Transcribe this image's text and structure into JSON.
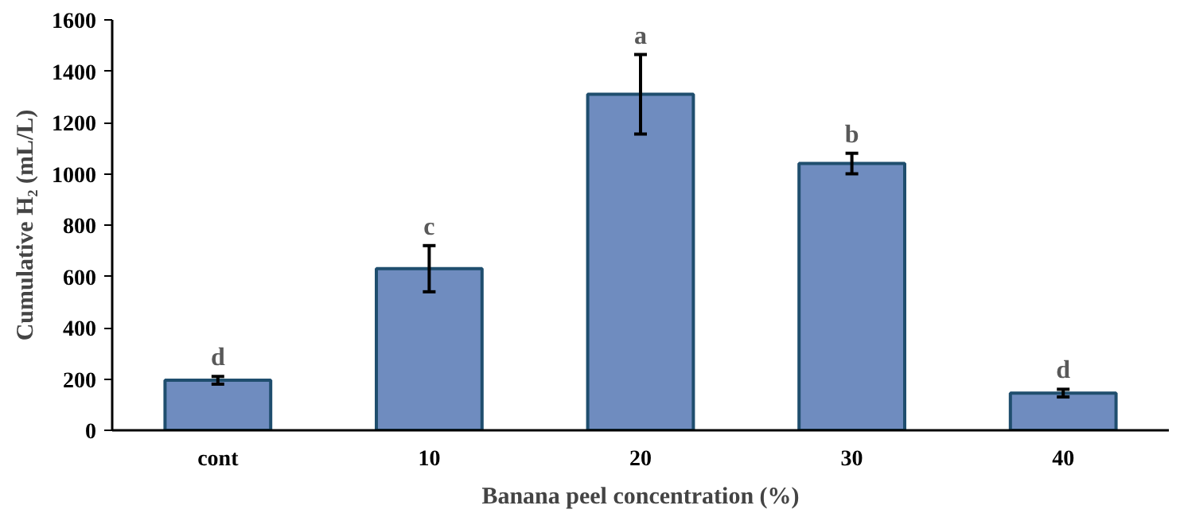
{
  "chart_data": {
    "type": "bar",
    "xlabel": "Banana peel concentration (%)",
    "ylabel": "Cumulative H₂ (mL/L)",
    "categories": [
      "cont",
      "10",
      "20",
      "30",
      "40"
    ],
    "values": [
      195,
      630,
      1310,
      1040,
      145
    ],
    "errors": [
      15,
      90,
      155,
      40,
      15
    ],
    "color": "#6f8cbf",
    "ylim": [
      0,
      1600
    ],
    "yticks": [
      0,
      200,
      400,
      600,
      800,
      1000,
      1200,
      1400,
      1600
    ],
    "grid": false,
    "annotations": [
      "d",
      "c",
      "a",
      "b",
      "d"
    ]
  }
}
